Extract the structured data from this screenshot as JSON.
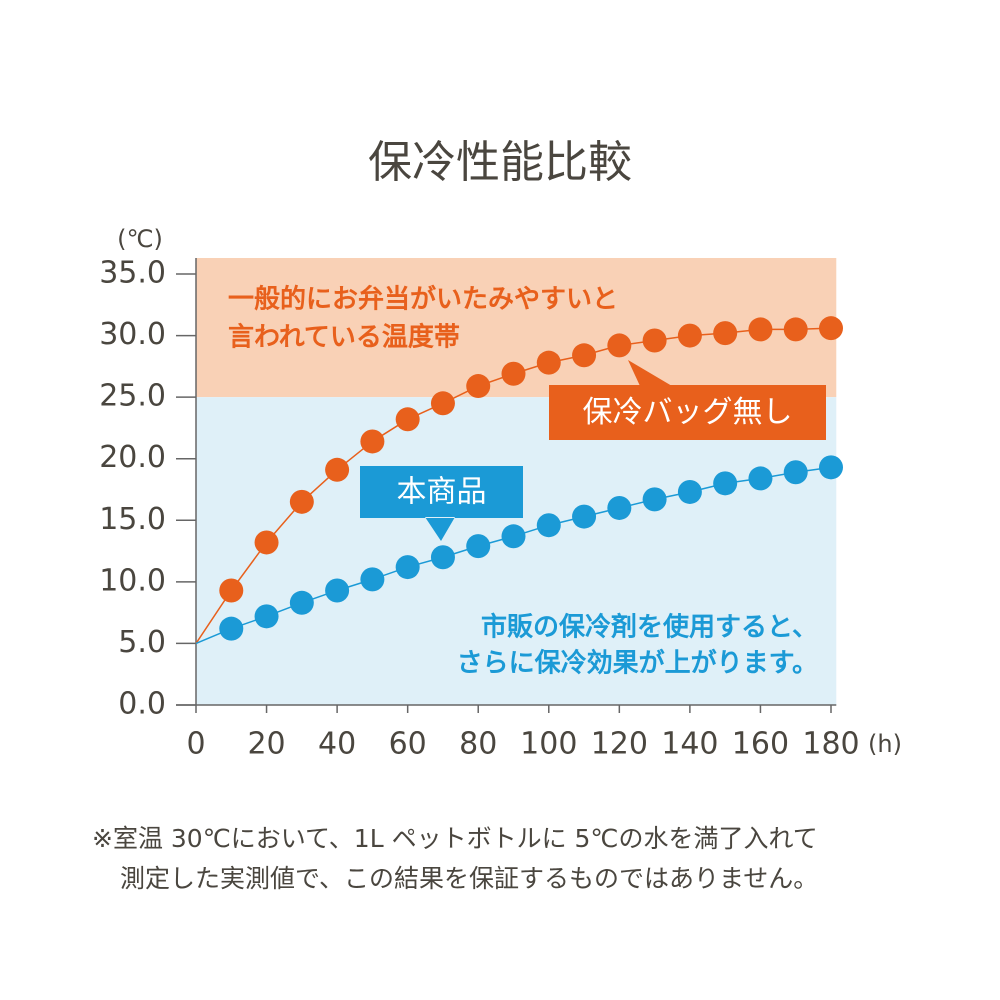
{
  "chart_data": {
    "type": "line",
    "title": "保冷性能比較",
    "y_unit": "(℃)",
    "x_unit": "(h)",
    "x": [
      0,
      10,
      20,
      30,
      40,
      50,
      60,
      70,
      80,
      90,
      100,
      110,
      120,
      130,
      140,
      150,
      160,
      170,
      180
    ],
    "series": [
      {
        "name": "保冷バッグ無し",
        "color": "#e8601c",
        "values": [
          5.0,
          9.3,
          13.2,
          16.5,
          19.1,
          21.4,
          23.2,
          24.5,
          25.9,
          26.9,
          27.8,
          28.4,
          29.2,
          29.6,
          30.0,
          30.2,
          30.5,
          30.5,
          30.6
        ]
      },
      {
        "name": "本商品",
        "color": "#1b9ad6",
        "values": [
          5.0,
          6.2,
          7.2,
          8.3,
          9.3,
          10.2,
          11.2,
          12.0,
          12.9,
          13.7,
          14.6,
          15.3,
          16.0,
          16.7,
          17.3,
          18.0,
          18.4,
          18.9,
          19.3
        ]
      }
    ],
    "bands": [
      {
        "from": 25,
        "to": 36.3,
        "color": "#f9d1b6",
        "label": [
          "一般的にお弁当がいたみやすいと",
          "言われている温度帯"
        ],
        "label_color": "#e8601c"
      },
      {
        "from": 0,
        "to": 25,
        "color": "#dff0f8",
        "label": [
          "市販の保冷剤を使用すると、",
          "さらに保冷効果が上がります。"
        ],
        "label_color": "#1b9ad6"
      }
    ],
    "xlim": [
      0,
      181.5
    ],
    "ylim": [
      0,
      36.3
    ],
    "xticks": [
      0,
      20,
      40,
      60,
      80,
      100,
      120,
      140,
      160,
      180
    ],
    "yticks": [
      {
        "value": 0,
        "label": "0.0"
      },
      {
        "value": 5,
        "label": "5.0"
      },
      {
        "value": 10,
        "label": "10.0"
      },
      {
        "value": 15,
        "label": "15.0"
      },
      {
        "value": 20,
        "label": "20.0"
      },
      {
        "value": 25,
        "label": "25.0"
      },
      {
        "value": 30,
        "label": "30.0"
      },
      {
        "value": 35,
        "label": "35.0"
      }
    ],
    "footnote": [
      "※室温 30℃において、1L ペットボトルに 5℃の水を満了入れて",
      "測定した実測値で、この結果を保証するものではありません。"
    ]
  }
}
